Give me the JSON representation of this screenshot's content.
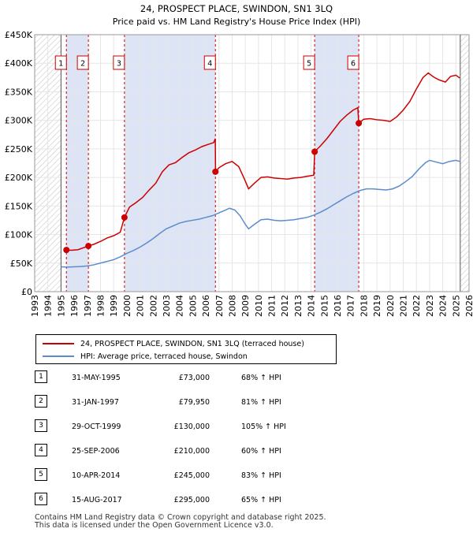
{
  "chart_data": {
    "type": "line",
    "title": "24, PROSPECT PLACE, SWINDON, SN1 3LQ",
    "subtitle": "Price paid vs. HM Land Registry's House Price Index (HPI)",
    "x_range": [
      1993,
      2026
    ],
    "ylim": [
      0,
      450000
    ],
    "y_ticks": [
      0,
      50000,
      100000,
      150000,
      200000,
      250000,
      300000,
      350000,
      400000,
      450000
    ],
    "y_tick_labels": [
      "£0",
      "£50K",
      "£100K",
      "£150K",
      "£200K",
      "£250K",
      "£300K",
      "£350K",
      "£400K",
      "£450K"
    ],
    "x_tick_labels": [
      "1993",
      "1994",
      "1995",
      "1996",
      "1997",
      "1998",
      "1999",
      "2000",
      "2001",
      "2002",
      "2003",
      "2004",
      "2005",
      "2006",
      "2007",
      "2008",
      "2009",
      "2010",
      "2011",
      "2012",
      "2013",
      "2014",
      "2015",
      "2016",
      "2017",
      "2018",
      "2019",
      "2020",
      "2021",
      "2022",
      "2023",
      "2024",
      "2025",
      "2026"
    ],
    "colors": {
      "property": "#cc0000",
      "hpi": "#5b8ccc",
      "shade": "#dde4f5"
    },
    "series": [
      {
        "name": "24, PROSPECT PLACE, SWINDON, SN1 3LQ (terraced house)",
        "points": [
          [
            1995.41,
            73000
          ],
          [
            1995.8,
            72500
          ],
          [
            1996.3,
            73500
          ],
          [
            1997.08,
            79950
          ],
          [
            1997.5,
            83000
          ],
          [
            1998.0,
            88000
          ],
          [
            1998.5,
            94000
          ],
          [
            1999.0,
            98000
          ],
          [
            1999.5,
            104000
          ],
          [
            1999.82,
            130000
          ],
          [
            2000.2,
            148000
          ],
          [
            2000.7,
            156000
          ],
          [
            2001.2,
            165000
          ],
          [
            2001.7,
            178000
          ],
          [
            2002.2,
            190000
          ],
          [
            2002.7,
            210000
          ],
          [
            2003.2,
            222000
          ],
          [
            2003.7,
            226000
          ],
          [
            2004.2,
            235000
          ],
          [
            2004.7,
            243000
          ],
          [
            2005.2,
            248000
          ],
          [
            2005.7,
            254000
          ],
          [
            2006.2,
            258000
          ],
          [
            2006.6,
            261000
          ],
          [
            2006.72,
            268000
          ],
          [
            2006.74,
            210000
          ],
          [
            2007.0,
            217000
          ],
          [
            2007.5,
            224000
          ],
          [
            2008.0,
            228000
          ],
          [
            2008.5,
            219000
          ],
          [
            2008.9,
            199000
          ],
          [
            2009.25,
            180000
          ],
          [
            2009.7,
            190000
          ],
          [
            2010.2,
            200000
          ],
          [
            2010.7,
            201000
          ],
          [
            2011.2,
            199000
          ],
          [
            2011.7,
            198000
          ],
          [
            2012.2,
            197000
          ],
          [
            2012.7,
            199000
          ],
          [
            2013.2,
            200000
          ],
          [
            2013.7,
            202000
          ],
          [
            2014.2,
            204000
          ],
          [
            2014.27,
            245000
          ],
          [
            2014.7,
            255000
          ],
          [
            2015.2,
            268000
          ],
          [
            2015.7,
            283000
          ],
          [
            2016.2,
            298000
          ],
          [
            2016.7,
            309000
          ],
          [
            2017.2,
            318000
          ],
          [
            2017.55,
            322000
          ],
          [
            2017.62,
            295000
          ],
          [
            2018.0,
            302000
          ],
          [
            2018.5,
            303000
          ],
          [
            2019.0,
            301000
          ],
          [
            2019.5,
            300000
          ],
          [
            2020.0,
            298000
          ],
          [
            2020.5,
            306000
          ],
          [
            2021.0,
            318000
          ],
          [
            2021.5,
            333000
          ],
          [
            2022.0,
            355000
          ],
          [
            2022.5,
            375000
          ],
          [
            2022.9,
            383000
          ],
          [
            2023.3,
            376000
          ],
          [
            2023.7,
            371000
          ],
          [
            2024.2,
            367000
          ],
          [
            2024.6,
            377000
          ],
          [
            2025.0,
            379000
          ],
          [
            2025.3,
            374000
          ]
        ]
      },
      {
        "name": "HPI: Average price, terraced house, Swindon",
        "points": [
          [
            1995.0,
            43500
          ],
          [
            1995.5,
            43000
          ],
          [
            1996.0,
            43500
          ],
          [
            1996.5,
            44000
          ],
          [
            1997.0,
            45000
          ],
          [
            1997.5,
            47000
          ],
          [
            1998.0,
            50000
          ],
          [
            1998.5,
            53000
          ],
          [
            1999.0,
            56000
          ],
          [
            1999.5,
            61000
          ],
          [
            2000.0,
            67000
          ],
          [
            2000.5,
            72000
          ],
          [
            2001.0,
            78000
          ],
          [
            2001.5,
            85000
          ],
          [
            2002.0,
            93000
          ],
          [
            2002.5,
            102000
          ],
          [
            2003.0,
            110000
          ],
          [
            2003.5,
            115000
          ],
          [
            2004.0,
            120000
          ],
          [
            2004.5,
            123000
          ],
          [
            2005.0,
            125000
          ],
          [
            2005.5,
            127000
          ],
          [
            2006.0,
            130000
          ],
          [
            2006.5,
            133000
          ],
          [
            2007.0,
            138000
          ],
          [
            2007.5,
            143000
          ],
          [
            2007.8,
            146000
          ],
          [
            2008.2,
            143000
          ],
          [
            2008.6,
            133000
          ],
          [
            2009.0,
            118000
          ],
          [
            2009.25,
            110000
          ],
          [
            2009.7,
            118000
          ],
          [
            2010.2,
            126000
          ],
          [
            2010.7,
            127000
          ],
          [
            2011.2,
            125000
          ],
          [
            2011.7,
            124000
          ],
          [
            2012.2,
            125000
          ],
          [
            2012.7,
            126000
          ],
          [
            2013.2,
            128000
          ],
          [
            2013.7,
            130000
          ],
          [
            2014.2,
            134000
          ],
          [
            2014.7,
            139000
          ],
          [
            2015.2,
            145000
          ],
          [
            2015.7,
            152000
          ],
          [
            2016.2,
            159000
          ],
          [
            2016.7,
            166000
          ],
          [
            2017.2,
            172000
          ],
          [
            2017.7,
            177000
          ],
          [
            2018.2,
            180000
          ],
          [
            2018.7,
            180000
          ],
          [
            2019.2,
            179000
          ],
          [
            2019.7,
            178000
          ],
          [
            2020.2,
            180000
          ],
          [
            2020.7,
            185000
          ],
          [
            2021.2,
            193000
          ],
          [
            2021.7,
            202000
          ],
          [
            2022.2,
            215000
          ],
          [
            2022.7,
            226000
          ],
          [
            2023.0,
            230000
          ],
          [
            2023.5,
            227000
          ],
          [
            2024.0,
            224000
          ],
          [
            2024.5,
            228000
          ],
          [
            2025.0,
            230000
          ],
          [
            2025.3,
            228000
          ]
        ]
      }
    ],
    "shaded_bands": [
      [
        1995.41,
        1997.08
      ],
      [
        1999.82,
        2006.73
      ],
      [
        2014.27,
        2017.62
      ]
    ],
    "annotations": [
      {
        "label": "1",
        "year": 1995.41,
        "price": 73000
      },
      {
        "label": "2",
        "year": 1997.08,
        "price": 79950
      },
      {
        "label": "3",
        "year": 1999.82,
        "price": 130000
      },
      {
        "label": "4",
        "year": 2006.73,
        "price": 210000
      },
      {
        "label": "5",
        "year": 2014.27,
        "price": 245000
      },
      {
        "label": "6",
        "year": 2017.62,
        "price": 295000
      }
    ],
    "hatch_start": 1993,
    "hatch_end_year": 1995.0,
    "hatch_right_start": 2025.33
  },
  "legend": {
    "property_label": "24, PROSPECT PLACE, SWINDON, SN1 3LQ (terraced house)",
    "hpi_label": "HPI: Average price, terraced house, Swindon"
  },
  "sales": [
    {
      "num": "1",
      "date": "31-MAY-1995",
      "price": "£73,000",
      "pct": "68% ↑ HPI"
    },
    {
      "num": "2",
      "date": "31-JAN-1997",
      "price": "£79,950",
      "pct": "81% ↑ HPI"
    },
    {
      "num": "3",
      "date": "29-OCT-1999",
      "price": "£130,000",
      "pct": "105% ↑ HPI"
    },
    {
      "num": "4",
      "date": "25-SEP-2006",
      "price": "£210,000",
      "pct": "60% ↑ HPI"
    },
    {
      "num": "5",
      "date": "10-APR-2014",
      "price": "£245,000",
      "pct": "83% ↑ HPI"
    },
    {
      "num": "6",
      "date": "15-AUG-2017",
      "price": "£295,000",
      "pct": "65% ↑ HPI"
    }
  ],
  "footer": {
    "line1": "Contains HM Land Registry data © Crown copyright and database right 2025.",
    "line2": "This data is licensed under the Open Government Licence v3.0."
  }
}
